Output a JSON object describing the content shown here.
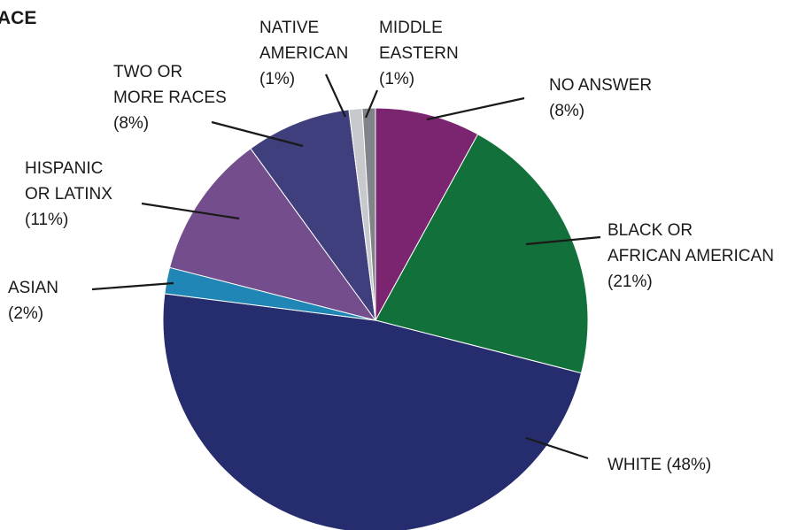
{
  "chart_data": {
    "type": "pie",
    "title": "ACE",
    "slices": [
      {
        "label": "NO ANSWER",
        "value": 8,
        "color": "#7b2570",
        "text": [
          "NO ANSWER",
          "(8%)"
        ]
      },
      {
        "label": "BLACK OR AFRICAN AMERICAN",
        "value": 21,
        "color": "#12703a",
        "text": [
          "BLACK OR",
          "AFRICAN AMERICAN",
          "(21%)"
        ]
      },
      {
        "label": "WHITE",
        "value": 48,
        "color": "#262d6e",
        "text": [
          "WHITE (48%)"
        ]
      },
      {
        "label": "ASIAN",
        "value": 2,
        "color": "#1f86b5",
        "text": [
          "ASIAN",
          "(2%)"
        ]
      },
      {
        "label": "HISPANIC OR LATINX",
        "value": 11,
        "color": "#734d8c",
        "text": [
          "HISPANIC",
          "OR LATINX",
          "(11%)"
        ]
      },
      {
        "label": "TWO OR MORE RACES",
        "value": 8,
        "color": "#3e3f7c",
        "text": [
          "TWO OR",
          "MORE RACES",
          "(8%)"
        ]
      },
      {
        "label": "NATIVE AMERICAN",
        "value": 1,
        "color": "#c8c9cc",
        "text": [
          "NATIVE",
          "AMERICAN",
          "(1%)"
        ]
      },
      {
        "label": "MIDDLE EASTERN",
        "value": 1,
        "color": "#808387",
        "text": [
          "MIDDLE",
          "EASTERN",
          "(1%)"
        ]
      }
    ]
  }
}
